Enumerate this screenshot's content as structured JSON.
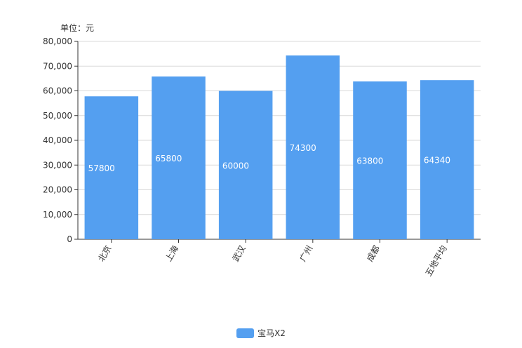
{
  "unit_label": "单位：元",
  "chart_data": {
    "type": "bar",
    "categories": [
      "北京",
      "上海",
      "武汉",
      "广州",
      "成都",
      "五地平均"
    ],
    "series": [
      {
        "name": "宝马X2",
        "values": [
          57800,
          65800,
          60000,
          74300,
          63800,
          64340
        ],
        "color": "#549ff0"
      }
    ],
    "data_labels": [
      "57800",
      "65800",
      "60000",
      "74300",
      "63800",
      "64340"
    ],
    "ylim": [
      0,
      80000
    ],
    "yticks": [
      0,
      10000,
      20000,
      30000,
      40000,
      50000,
      60000,
      70000,
      80000
    ],
    "ytick_labels": [
      "0",
      "10,000",
      "20,000",
      "30,000",
      "40,000",
      "50,000",
      "60,000",
      "70,000",
      "80,000"
    ],
    "grid": true,
    "legend_position": "bottom-center"
  }
}
